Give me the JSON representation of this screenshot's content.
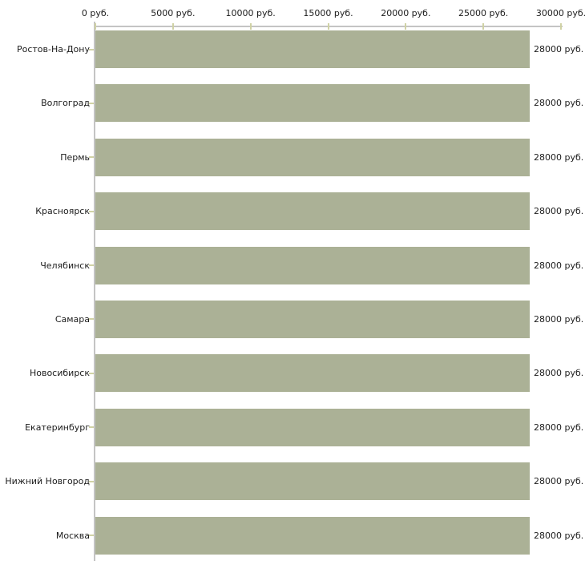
{
  "chart_data": {
    "type": "bar",
    "orientation": "horizontal",
    "title": "",
    "xlabel": "",
    "ylabel": "",
    "grid": false,
    "legend": false,
    "categories": [
      "Ростов-На-Дону",
      "Волгоград",
      "Пермь",
      "Красноярск",
      "Челябинск",
      "Самара",
      "Новосибирск",
      "Екатеринбург",
      "Нижний Новгород",
      "Москва"
    ],
    "values": [
      28000,
      28000,
      28000,
      28000,
      28000,
      28000,
      28000,
      28000,
      28000,
      28000
    ],
    "value_labels": [
      "28000 руб.",
      "28000 руб.",
      "28000 руб.",
      "28000 руб.",
      "28000 руб.",
      "28000 руб.",
      "28000 руб.",
      "28000 руб.",
      "28000 руб.",
      "28000 руб."
    ],
    "x_axis": {
      "min": 0,
      "max": 30000,
      "tick_values": [
        0,
        5000,
        10000,
        15000,
        20000,
        25000,
        30000
      ],
      "tick_labels": [
        "0 руб.",
        "5000 руб.",
        "10000 руб.",
        "15000 руб.",
        "20000 руб.",
        "25000 руб.",
        "30000 руб."
      ]
    },
    "colors": {
      "bar": "#abb196",
      "axis": "#c4c4c4",
      "tick": "#d0d2a5",
      "text": "#1c1c1c",
      "background": "#ffffff"
    }
  }
}
